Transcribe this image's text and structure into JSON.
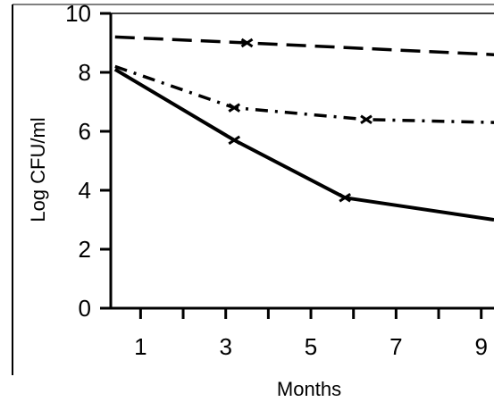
{
  "chart_data": {
    "type": "line",
    "title": "",
    "xlabel": "Months",
    "ylabel": "Log CFU/ml",
    "xlim": [
      0.3,
      9.3
    ],
    "ylim": [
      0,
      10
    ],
    "xticks": [
      1,
      3,
      5,
      7,
      9
    ],
    "yticks": [
      0,
      2,
      4,
      6,
      8,
      10
    ],
    "series": [
      {
        "style": "dashed",
        "color": "#000000",
        "x": [
          0.4,
          3.5,
          9.3
        ],
        "y": [
          9.2,
          9.0,
          8.6
        ]
      },
      {
        "style": "dash-dot",
        "color": "#000000",
        "x": [
          0.4,
          3.2,
          6.3,
          9.3
        ],
        "y": [
          8.2,
          6.8,
          6.4,
          6.3
        ]
      },
      {
        "style": "solid",
        "color": "#000000",
        "x": [
          0.4,
          3.2,
          5.8,
          9.3
        ],
        "y": [
          8.1,
          5.7,
          3.75,
          3.0
        ]
      }
    ],
    "grid": false,
    "legend": "none"
  }
}
